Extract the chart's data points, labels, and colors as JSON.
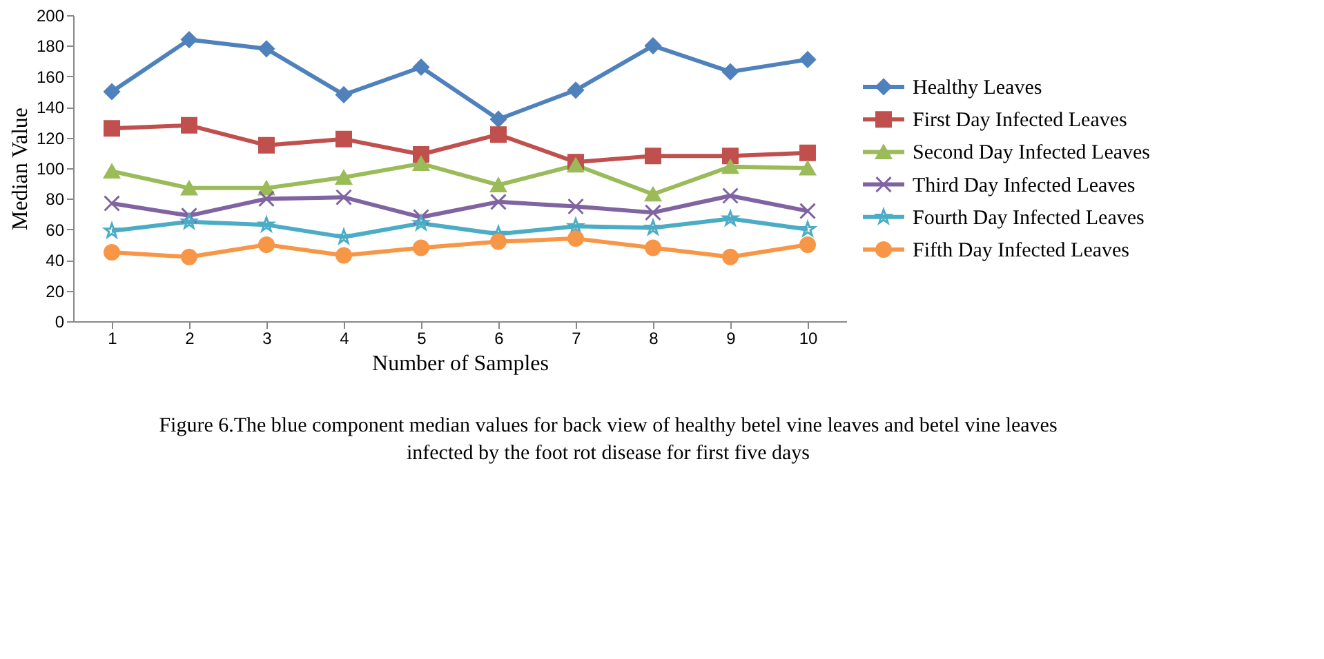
{
  "chart_data": {
    "type": "line",
    "xlabel": "Number of Samples",
    "ylabel": "Median Value",
    "categories": [
      "1",
      "2",
      "3",
      "4",
      "5",
      "6",
      "7",
      "8",
      "9",
      "10"
    ],
    "ylim": [
      0,
      200
    ],
    "yticks": [
      0,
      20,
      40,
      60,
      80,
      100,
      120,
      140,
      160,
      180,
      200
    ],
    "grid": false,
    "legend": "right",
    "line_style": "solid",
    "series": [
      {
        "name": "Healthy Leaves",
        "color": "#4f81bd",
        "marker": "diamond",
        "values": [
          150,
          184,
          178,
          148,
          166,
          132,
          151,
          180,
          163,
          171
        ]
      },
      {
        "name": "First Day Infected Leaves",
        "color": "#c0504d",
        "marker": "square",
        "values": [
          126,
          128,
          115,
          119,
          109,
          122,
          104,
          108,
          108,
          110
        ]
      },
      {
        "name": "Second Day Infected Leaves",
        "color": "#9bbb59",
        "marker": "triangle",
        "values": [
          98,
          87,
          87,
          94,
          103,
          89,
          102,
          83,
          101,
          100
        ]
      },
      {
        "name": "Third Day Infected Leaves",
        "color": "#8064a2",
        "marker": "cross",
        "values": [
          77,
          69,
          80,
          81,
          68,
          78,
          75,
          71,
          82,
          72
        ]
      },
      {
        "name": "Fourth Day Infected Leaves",
        "color": "#4bacc6",
        "marker": "star",
        "values": [
          59,
          65,
          63,
          55,
          64,
          57,
          62,
          61,
          67,
          60
        ]
      },
      {
        "name": "Fifth Day Infected Leaves",
        "color": "#f79646",
        "marker": "circle",
        "values": [
          45,
          42,
          50,
          43,
          48,
          52,
          54,
          48,
          42,
          50
        ]
      }
    ],
    "annotations": [
      "Figure 6.The blue component median values for back view of healthy betel vine leaves and betel vine leaves",
      "infected by the foot rot disease for first five days"
    ]
  }
}
